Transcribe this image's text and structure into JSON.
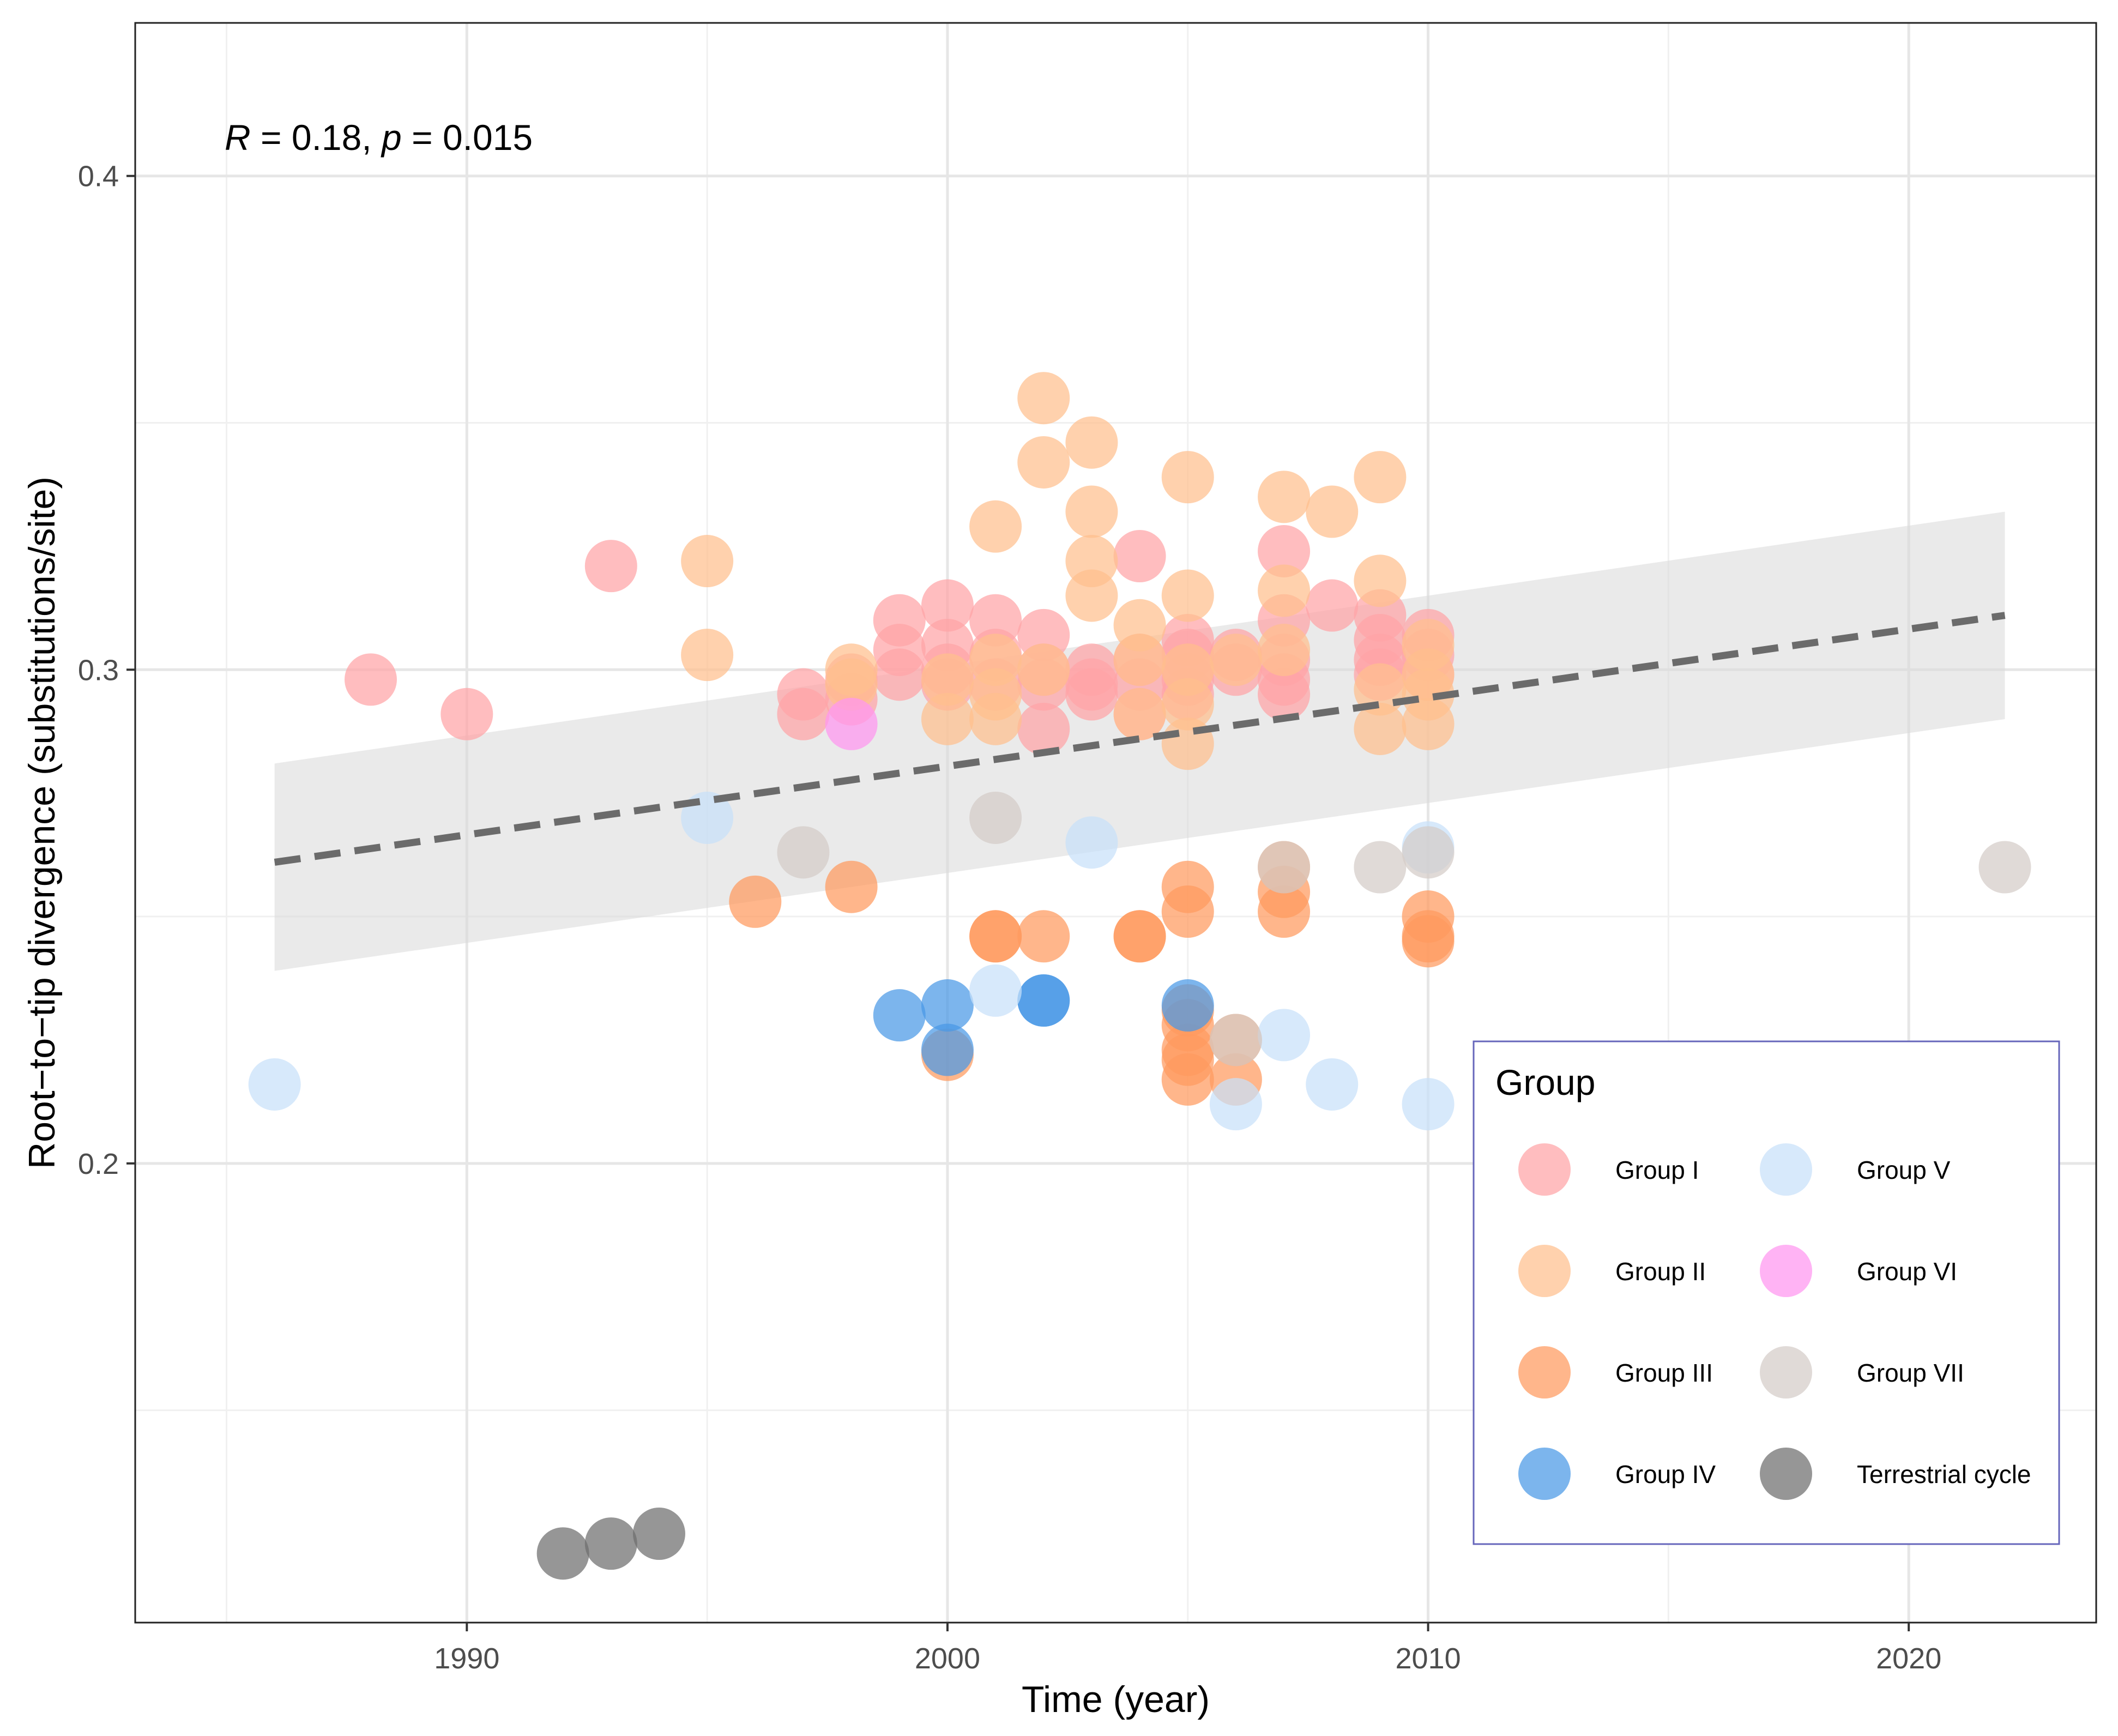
{
  "chart_data": {
    "type": "scatter",
    "title": "",
    "xlabel": "Time (year)",
    "ylabel": "Root−to−tip divergence (substitutions/site)",
    "xlim": [
      1983.1,
      2023.9
    ],
    "ylim": [
      0.107,
      0.431
    ],
    "x_ticks": [
      1990,
      2000,
      2010,
      2020
    ],
    "x_tick_labels": [
      "1990",
      "2000",
      "2010",
      "2020"
    ],
    "x_minor_ticks": [
      1985,
      1995,
      2005,
      2015
    ],
    "y_ticks": [
      0.2,
      0.3,
      0.4
    ],
    "y_tick_labels": [
      "0.2",
      "0.3",
      "0.4"
    ],
    "y_minor_ticks": [
      0.15,
      0.25,
      0.35
    ],
    "grid": true,
    "annotation": {
      "r_label": "R",
      "r_text": " = 0.18, ",
      "p_label": "p",
      "p_text": " = 0.015"
    },
    "trend": {
      "x": [
        1986,
        2022
      ],
      "y": [
        0.261,
        0.311
      ],
      "ci_lower": [
        0.239,
        0.29
      ],
      "ci_upper": [
        0.281,
        0.332
      ],
      "color": "#6b6b6b",
      "ci_color": "#d9d9d9"
    },
    "legend": {
      "title": "Group",
      "position": "bottom-right"
    },
    "series": [
      {
        "name": "Group I",
        "color": "#FFA3A6",
        "x": [
          1988,
          1990,
          1993,
          1997,
          1997,
          1998,
          1998,
          1999,
          1999,
          1999,
          2000,
          2000,
          2000,
          2000,
          2001,
          2001,
          2001,
          2002,
          2002,
          2002,
          2002,
          2003,
          2003,
          2003,
          2004,
          2004,
          2004,
          2004,
          2005,
          2005,
          2005,
          2005,
          2005,
          2006,
          2006,
          2007,
          2007,
          2007,
          2007,
          2007,
          2008,
          2009,
          2009,
          2009,
          2009,
          2010,
          2010,
          2010
        ],
        "y": [
          0.298,
          0.291,
          0.321,
          0.295,
          0.291,
          0.298,
          0.294,
          0.31,
          0.304,
          0.299,
          0.313,
          0.305,
          0.3,
          0.297,
          0.31,
          0.303,
          0.297,
          0.307,
          0.3,
          0.297,
          0.288,
          0.3,
          0.297,
          0.295,
          0.323,
          0.302,
          0.297,
          0.291,
          0.306,
          0.303,
          0.3,
          0.298,
          0.295,
          0.303,
          0.3,
          0.324,
          0.31,
          0.302,
          0.298,
          0.295,
          0.313,
          0.311,
          0.306,
          0.302,
          0.299,
          0.307,
          0.303,
          0.299
        ]
      },
      {
        "name": "Group II",
        "color": "#FFBF8E",
        "x": [
          1995,
          1995,
          1998,
          1998,
          2000,
          2000,
          2001,
          2001,
          2001,
          2001,
          2002,
          2002,
          2002,
          2003,
          2003,
          2003,
          2003,
          2004,
          2004,
          2004,
          2005,
          2005,
          2005,
          2005,
          2005,
          2006,
          2007,
          2007,
          2007,
          2008,
          2009,
          2009,
          2009,
          2009,
          2010,
          2010,
          2010,
          2010
        ],
        "y": [
          0.322,
          0.303,
          0.3,
          0.297,
          0.29,
          0.298,
          0.329,
          0.302,
          0.295,
          0.29,
          0.355,
          0.342,
          0.3,
          0.346,
          0.332,
          0.322,
          0.315,
          0.309,
          0.302,
          0.291,
          0.339,
          0.315,
          0.3,
          0.293,
          0.285,
          0.302,
          0.335,
          0.316,
          0.304,
          0.332,
          0.339,
          0.318,
          0.296,
          0.288,
          0.305,
          0.299,
          0.295,
          0.289
        ]
      },
      {
        "name": "Group III",
        "color": "#FF9A5E",
        "x": [
          1996,
          1998,
          2000,
          2001,
          2001,
          2002,
          2004,
          2004,
          2005,
          2005,
          2005,
          2005,
          2005,
          2005,
          2005,
          2006,
          2006,
          2007,
          2007,
          2007,
          2010,
          2010,
          2010
        ],
        "y": [
          0.253,
          0.256,
          0.222,
          0.246,
          0.246,
          0.246,
          0.246,
          0.246,
          0.256,
          0.251,
          0.231,
          0.228,
          0.223,
          0.221,
          0.217,
          0.225,
          0.217,
          0.26,
          0.255,
          0.251,
          0.25,
          0.246,
          0.245
        ]
      },
      {
        "name": "Group IV",
        "color": "#4A98E6",
        "x": [
          1999,
          2000,
          2000,
          2002,
          2002,
          2005
        ],
        "y": [
          0.23,
          0.232,
          0.223,
          0.233,
          0.233,
          0.232
        ]
      },
      {
        "name": "Group V",
        "color": "#C8E0FA",
        "x": [
          1986,
          1995,
          2001,
          2003,
          2006,
          2007,
          2008,
          2010,
          2010
        ],
        "y": [
          0.216,
          0.27,
          0.235,
          0.265,
          0.212,
          0.226,
          0.216,
          0.212,
          0.264
        ]
      },
      {
        "name": "Group VI",
        "color": "#FF96F0",
        "x": [
          1998
        ],
        "y": [
          0.289
        ]
      },
      {
        "name": "Group VII",
        "color": "#D4CCC7",
        "x": [
          1997,
          2001,
          2006,
          2007,
          2009,
          2010,
          2022
        ],
        "y": [
          0.263,
          0.27,
          0.225,
          0.26,
          0.26,
          0.263,
          0.26
        ]
      },
      {
        "name": "Terrestrial cycle",
        "color": "#6E6E6E",
        "x": [
          1992,
          1993,
          1994
        ],
        "y": [
          0.121,
          0.123,
          0.125
        ]
      }
    ]
  }
}
